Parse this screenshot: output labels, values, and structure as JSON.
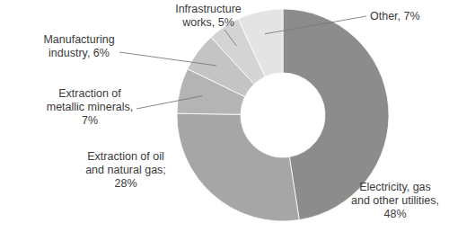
{
  "chart_data": {
    "type": "pie",
    "categories": [
      "Electricity, gas and other utilities,",
      "Extraction of oil and natural gas;",
      "Extraction of metallic minerals,",
      "Manufacturing industry,",
      "Infrastructure works,",
      "Other,"
    ],
    "values": [
      48,
      28,
      7,
      6,
      5,
      7
    ],
    "value_labels": [
      "48%",
      "28%",
      "7%",
      "6%",
      "5%",
      "7%"
    ],
    "colors": [
      "#8c8c8c",
      "#a6a6a6",
      "#b4b4b4",
      "#c4c4c4",
      "#d4d4d4",
      "#e4e4e4"
    ],
    "data_labels": true
  }
}
